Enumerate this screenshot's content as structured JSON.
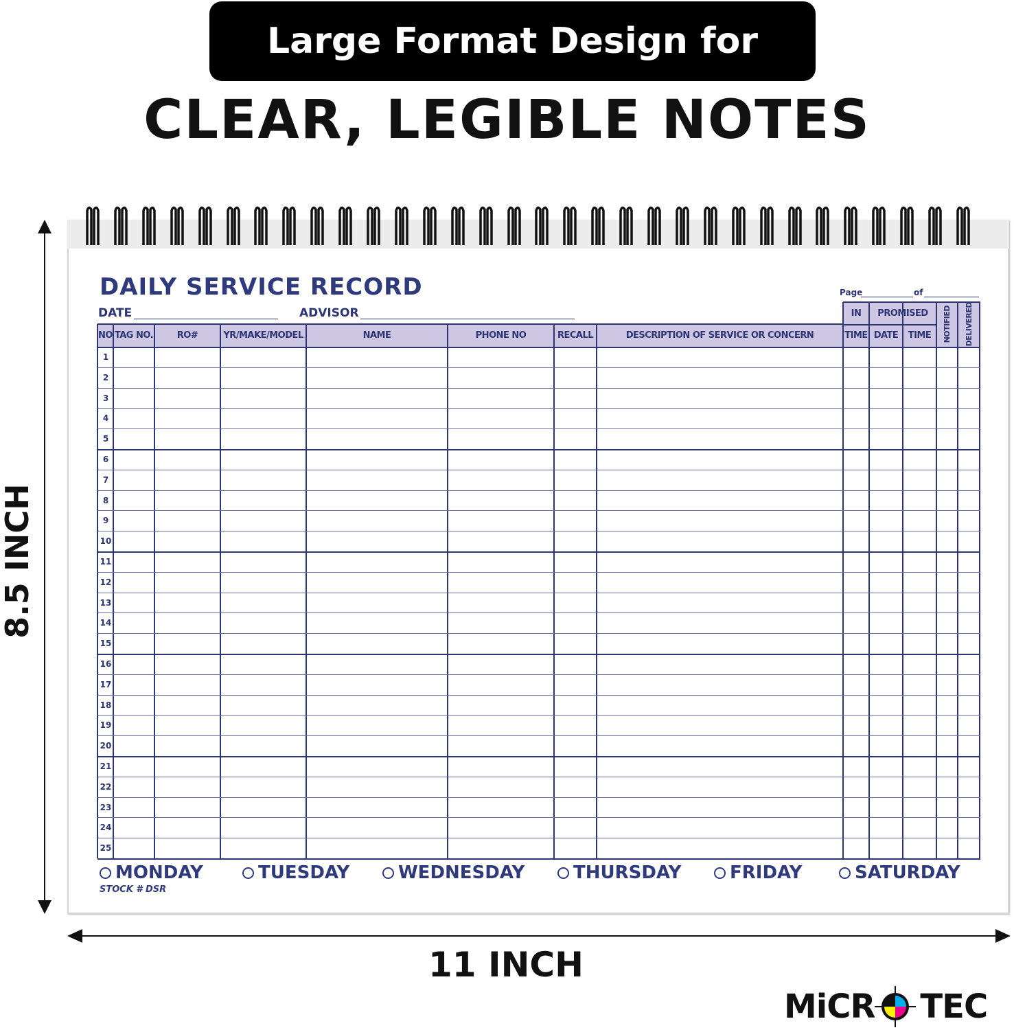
{
  "banner": {
    "text": "Large Format Design for"
  },
  "headline": "CLEAR, LEGIBLE NOTES",
  "dimensions": {
    "height": "8.5 INCH",
    "width": "11 INCH"
  },
  "form": {
    "title": "DAILY SERVICE RECORD",
    "date_label": "DATE",
    "advisor_label": "ADVISOR",
    "page_label": "Page",
    "of_label": "of",
    "group_in": "IN",
    "group_promised": "PROMISED",
    "columns": [
      "NO",
      "TAG NO.",
      "RO#",
      "YR/MAKE/MODEL",
      "NAME",
      "PHONE NO",
      "RECALL",
      "DESCRIPTION OF SERVICE OR CONCERN",
      "TIME",
      "DATE",
      "TIME",
      "NOTIFIED",
      "DELIVERED"
    ],
    "rows": [
      "1",
      "2",
      "3",
      "4",
      "5",
      "6",
      "7",
      "8",
      "9",
      "10",
      "11",
      "12",
      "13",
      "14",
      "15",
      "16",
      "17",
      "18",
      "19",
      "20",
      "21",
      "22",
      "23",
      "24",
      "25"
    ],
    "days": [
      "MONDAY",
      "TUESDAY",
      "WEDNESDAY",
      "THURSDAY",
      "FRIDAY",
      "SATURDAY"
    ],
    "stock": "STOCK # DSR"
  },
  "logo": {
    "text": "MiCRO TEC",
    "colors": [
      "#00aeef",
      "#ec008c",
      "#fff200",
      "#000000"
    ]
  },
  "colors": {
    "ink": "#2e3574",
    "header_fill": "#cdc7e4"
  }
}
